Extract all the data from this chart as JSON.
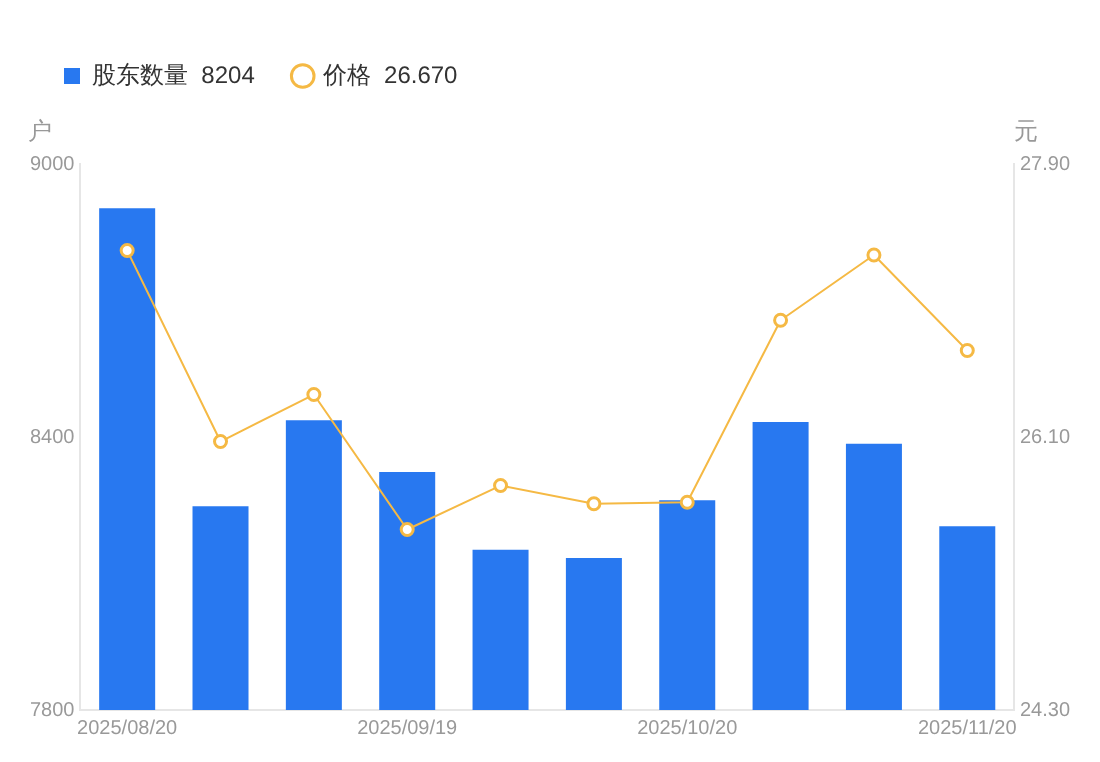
{
  "chart_data": {
    "type": "bar",
    "ylabel": "户",
    "y2label": "元",
    "categories": [
      "2025/08/20",
      null,
      null,
      "2025/09/19",
      null,
      null,
      "2025/10/20",
      null,
      null,
      "2025/11/20"
    ],
    "series": [
      {
        "name": "股东数量  8204",
        "color": "#2878f0",
        "values": [
          8903,
          8248,
          8437,
          8323,
          8152,
          8134,
          8261,
          8433,
          8385,
          8204
        ]
      },
      {
        "name": "价格  26.670",
        "type": "line",
        "axis": "y2",
        "color": "#f5b944",
        "marker": "circle",
        "values": [
          27.33,
          26.07,
          26.38,
          25.49,
          25.78,
          25.66,
          25.67,
          26.87,
          27.3,
          26.67
        ]
      }
    ],
    "ylim": [
      7800,
      9000
    ],
    "yticks": [
      7800,
      8400,
      9000
    ],
    "y2lim": [
      24.3,
      27.9
    ],
    "y2ticks": [
      {
        "value": 24.3,
        "label": "24.30"
      },
      {
        "value": 26.1,
        "label": "26.10"
      },
      {
        "value": 27.9,
        "label": "27.90"
      }
    ],
    "grid": false,
    "legend": "top left"
  }
}
